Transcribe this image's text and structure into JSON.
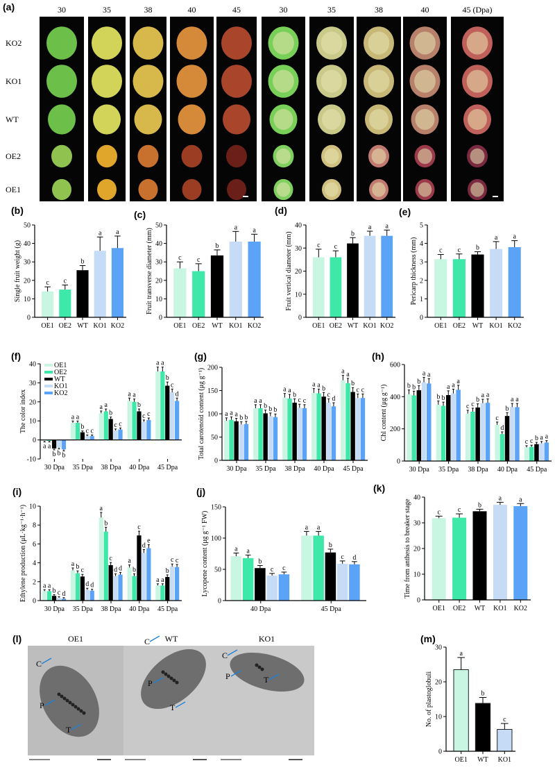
{
  "panel_labels": {
    "a": "(a)",
    "b": "(b)",
    "c": "(c)",
    "d": "(d)",
    "e": "(e)",
    "f": "(f)",
    "g": "(g)",
    "h": "(h)",
    "i": "(i)",
    "j": "(j)",
    "k": "(k)",
    "l": "(l)",
    "m": "(m)"
  },
  "photo_panel": {
    "column_headers": [
      "30",
      "35",
      "38",
      "40",
      "45",
      "30",
      "35",
      "38",
      "40",
      "45 (Dpa)"
    ],
    "row_labels": [
      "KO2",
      "KO1",
      "WT",
      "OE2",
      "OE1"
    ]
  },
  "tem_panel": {
    "titles": [
      "OE1",
      "WT",
      "KO1"
    ],
    "annotations": [
      "C",
      "P",
      "T"
    ]
  },
  "colors": {
    "OE1": "#c9f5e3",
    "OE2": "#3ee8a9",
    "WT": "#000000",
    "KO1": "#c6dbf6",
    "KO2": "#5ba3f7"
  },
  "chart_data": [
    {
      "id": "b",
      "type": "bar",
      "categories": [
        "OE1",
        "OE2",
        "WT",
        "KO1",
        "KO2"
      ],
      "values": [
        14,
        15,
        25.5,
        36,
        37.5
      ],
      "errors": [
        2.5,
        2.5,
        2.5,
        7.5,
        6.5
      ],
      "letters": [
        "c",
        "c",
        "b",
        "a",
        "a"
      ],
      "ylabel": "Single fruit weight (g)",
      "ylim": [
        0,
        50
      ],
      "yticks": [
        0,
        10,
        20,
        30,
        40,
        50
      ]
    },
    {
      "id": "c",
      "type": "bar",
      "categories": [
        "OE1",
        "OE2",
        "WT",
        "KO1",
        "KO2"
      ],
      "values": [
        26.5,
        25,
        33.5,
        41,
        41
      ],
      "errors": [
        3.5,
        4,
        3,
        5.5,
        4
      ],
      "letters": [
        "c",
        "c",
        "b",
        "a",
        "a"
      ],
      "ylabel": "Fruit transverse diameter (mm)",
      "ylim": [
        0,
        50
      ],
      "yticks": [
        0,
        10,
        20,
        30,
        40,
        50
      ]
    },
    {
      "id": "d",
      "type": "bar",
      "categories": [
        "OE1",
        "OE2",
        "WT",
        "KO1",
        "KO2"
      ],
      "values": [
        26,
        26,
        32,
        35.3,
        35.3
      ],
      "errors": [
        3.5,
        2.8,
        2.5,
        2,
        2.5
      ],
      "letters": [
        "c",
        "c",
        "b",
        "a",
        "a"
      ],
      "ylabel": "Fruit vertical diameter (mm)",
      "ylim": [
        0,
        40
      ],
      "yticks": [
        0,
        10,
        20,
        30,
        40
      ]
    },
    {
      "id": "e",
      "type": "bar",
      "categories": [
        "OE1",
        "OE2",
        "WT",
        "KO1",
        "KO2"
      ],
      "values": [
        3.15,
        3.15,
        3.4,
        3.7,
        3.8
      ],
      "errors": [
        0.25,
        0.28,
        0.15,
        0.4,
        0.35
      ],
      "letters": [
        "c",
        "c",
        "b",
        "a",
        "a"
      ],
      "ylabel": "Pericarp thickness (mm)",
      "ylim": [
        0,
        5
      ],
      "yticks": [
        0,
        1,
        2,
        3,
        4,
        5
      ]
    },
    {
      "id": "f",
      "type": "bar",
      "categories": [
        "30 Dpa",
        "35 Dpa",
        "38 Dpa",
        "40 Dpa",
        "45 Dpa"
      ],
      "series": [
        {
          "name": "OE1",
          "values": [
            -0.5,
            9,
            14,
            20.5,
            36
          ],
          "letters": [
            "a",
            "a",
            "a",
            "a",
            "a"
          ]
        },
        {
          "name": "OE2",
          "values": [
            -0.5,
            9,
            15,
            20,
            36
          ],
          "letters": [
            "a",
            "a",
            "a",
            "a",
            "a"
          ]
        },
        {
          "name": "WT",
          "values": [
            -4.5,
            4,
            11,
            15,
            28.5
          ],
          "letters": [
            "b",
            "b",
            "b",
            "b",
            "b"
          ]
        },
        {
          "name": "KO1",
          "values": [
            -4,
            2,
            5,
            9.5,
            25
          ],
          "letters": [
            "b",
            "c",
            "c",
            "c",
            "c"
          ]
        },
        {
          "name": "KO2",
          "values": [
            -5,
            2,
            5.5,
            10.5,
            20.5
          ],
          "letters": [
            "b",
            "c",
            "c",
            "c",
            "d"
          ]
        }
      ],
      "ylabel": "The color index",
      "ylim": [
        -10,
        40
      ],
      "yticks": [
        -10,
        0,
        10,
        20,
        30,
        40
      ],
      "legend": "top-left"
    },
    {
      "id": "g",
      "type": "bar",
      "categories": [
        "30 Dpa",
        "35 Dpa",
        "38 Dpa",
        "40 Dpa",
        "45 Dpa"
      ],
      "series": [
        {
          "name": "OE1",
          "values": [
            85,
            112,
            135,
            145,
            172
          ],
          "letters": [
            "a",
            "a",
            "a",
            "a",
            "a"
          ]
        },
        {
          "name": "OE2",
          "values": [
            87,
            112,
            133,
            144,
            166
          ],
          "letters": [
            "a",
            "a",
            "a",
            "a",
            "a"
          ]
        },
        {
          "name": "WT",
          "values": [
            84,
            101,
            124,
            137,
            147
          ],
          "letters": [
            "a",
            "b",
            "b",
            "b",
            "b"
          ]
        },
        {
          "name": "KO1",
          "values": [
            77,
            95,
            113,
            124,
            134
          ],
          "letters": [
            "b",
            "b",
            "c",
            "c",
            "c"
          ]
        },
        {
          "name": "KO2",
          "values": [
            78,
            93,
            112,
            116,
            134
          ],
          "letters": [
            "b",
            "b",
            "c",
            "d",
            "c"
          ]
        }
      ],
      "ylabel": "Total carotenoid content (μg g⁻¹)",
      "ylim": [
        0,
        200
      ],
      "yticks": [
        0,
        50,
        100,
        150,
        200
      ]
    },
    {
      "id": "h",
      "type": "bar",
      "categories": [
        "30 Dpa",
        "35 Dpa",
        "38 Dpa",
        "40 Dpa",
        "45 Dpa"
      ],
      "series": [
        {
          "name": "OE1",
          "values": [
            415,
            350,
            295,
            225,
            85
          ],
          "letters": [
            "b",
            "b",
            "c",
            "c",
            "c"
          ]
        },
        {
          "name": "OE2",
          "values": [
            408,
            343,
            307,
            167,
            88
          ],
          "letters": [
            "b",
            "b",
            "c",
            "d",
            "c"
          ]
        },
        {
          "name": "WT",
          "values": [
            440,
            410,
            333,
            280,
            105
          ],
          "letters": [
            "b",
            "a",
            "b",
            "b",
            "b"
          ]
        },
        {
          "name": "KO1",
          "values": [
            490,
            420,
            360,
            335,
            110
          ],
          "letters": [
            "a",
            "a",
            "a",
            "a",
            "a"
          ]
        },
        {
          "name": "KO2",
          "values": [
            482,
            443,
            362,
            335,
            115
          ],
          "letters": [
            "a",
            "a",
            "a",
            "a",
            "a"
          ]
        }
      ],
      "ylabel": "Chl content (μg g⁻¹)",
      "ylim": [
        0,
        600
      ],
      "yticks": [
        0,
        200,
        400,
        600
      ]
    },
    {
      "id": "i",
      "type": "bar",
      "categories": [
        "30 Dpa",
        "35 Dpa",
        "38 Dpa",
        "40 Dpa",
        "45 Dpa"
      ],
      "series": [
        {
          "name": "OE1",
          "values": [
            1,
            3.2,
            8.8,
            3.5,
            1.6
          ],
          "letters": [
            "a",
            "a",
            "a",
            "a",
            "a"
          ]
        },
        {
          "name": "OE2",
          "values": [
            1,
            2.9,
            7.3,
            2.6,
            1.6
          ],
          "letters": [
            "a",
            "b",
            "b",
            "b",
            "a"
          ]
        },
        {
          "name": "WT",
          "values": [
            0.5,
            2.55,
            3.75,
            6.9,
            2.5
          ],
          "letters": [
            "b",
            "c",
            "c",
            "c",
            "b"
          ]
        },
        {
          "name": "KO1",
          "values": [
            0.3,
            1.15,
            2.6,
            5.05,
            3.6
          ],
          "letters": [
            "c",
            "d",
            "d",
            "d",
            "c"
          ]
        },
        {
          "name": "KO2",
          "values": [
            0.2,
            1.05,
            2.75,
            5.55,
            3.55
          ],
          "letters": [
            "d",
            "d",
            "d",
            "e",
            "c"
          ]
        }
      ],
      "ylabel": "Ethylene production (μL·kg⁻¹·h⁻¹)",
      "ylim": [
        0,
        10
      ],
      "yticks": [
        0,
        2,
        4,
        6,
        8,
        10
      ]
    },
    {
      "id": "j",
      "type": "bar",
      "categories": [
        "40 Dpa",
        "45 Dpa"
      ],
      "series": [
        {
          "name": "OE1",
          "values": [
            71,
            104
          ],
          "letters": [
            "a",
            "a"
          ]
        },
        {
          "name": "OE2",
          "values": [
            68,
            104
          ],
          "letters": [
            "a",
            "a"
          ]
        },
        {
          "name": "WT",
          "values": [
            52,
            77
          ],
          "letters": [
            "b",
            "b"
          ]
        },
        {
          "name": "KO1",
          "values": [
            40,
            59
          ],
          "letters": [
            "c",
            "c"
          ]
        },
        {
          "name": "KO2",
          "values": [
            42,
            58
          ],
          "letters": [
            "c",
            "d"
          ]
        }
      ],
      "ylabel": "Lycopene content (μg g⁻¹ FW)",
      "ylim": [
        0,
        150
      ],
      "yticks": [
        0,
        50,
        100,
        150
      ]
    },
    {
      "id": "k",
      "type": "bar",
      "categories": [
        "OE1",
        "OE2",
        "WT",
        "KO1",
        "KO2"
      ],
      "values": [
        31.8,
        32,
        34.5,
        37,
        36.5
      ],
      "errors": [
        0.8,
        1.5,
        0.8,
        1,
        1
      ],
      "letters": [
        "c",
        "c",
        "b",
        "a",
        "a"
      ],
      "ylabel": "Time from anthesis to breaker stage",
      "ylim": [
        0,
        40
      ],
      "yticks": [
        0,
        10,
        20,
        30,
        40
      ]
    },
    {
      "id": "m",
      "type": "bar",
      "categories": [
        "OE1",
        "WT",
        "KO1"
      ],
      "values": [
        23.5,
        13.8,
        6.3
      ],
      "errors": [
        3.5,
        1.7,
        1.7
      ],
      "letters": [
        "a",
        "b",
        "c"
      ],
      "ylabel": "No. of plastoglobuli",
      "ylim": [
        0,
        30
      ],
      "yticks": [
        0,
        10,
        20,
        30
      ]
    }
  ]
}
